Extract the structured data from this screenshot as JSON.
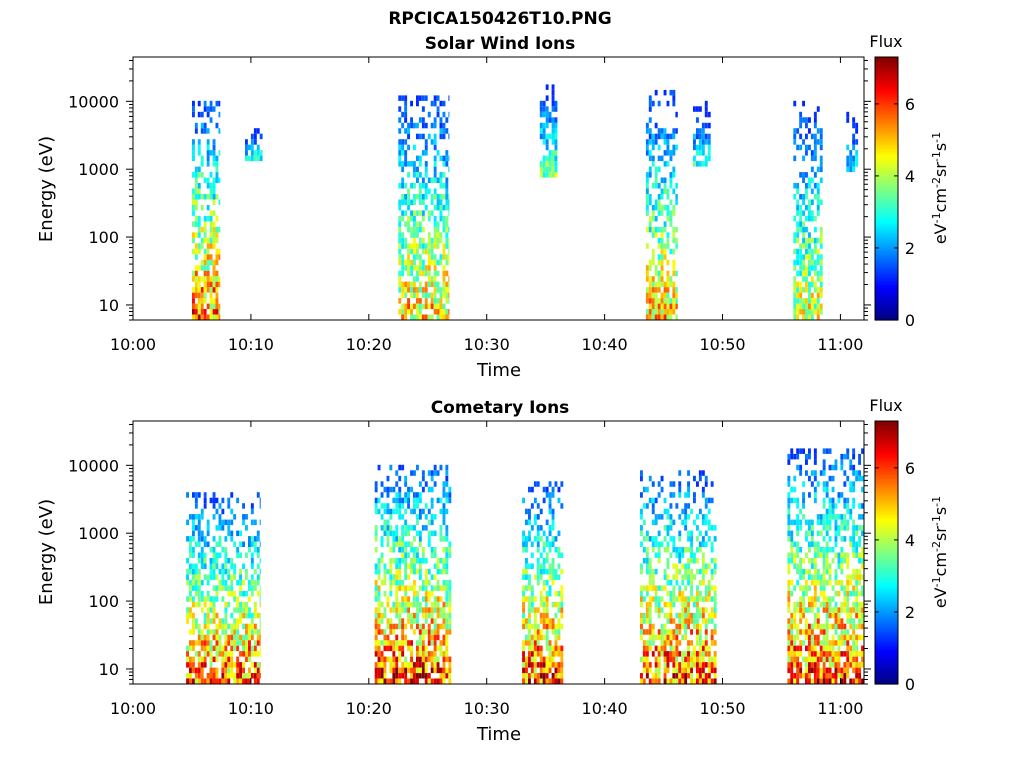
{
  "figure": {
    "title": "RPCICA150426T10.PNG"
  },
  "chart_data": [
    {
      "type": "heatmap",
      "title": "Solar Wind Ions",
      "xlabel": "Time",
      "ylabel": "Energy (eV)",
      "xlim": [
        "10:00",
        "11:02"
      ],
      "ylim": [
        6,
        45000
      ],
      "yscale": "log",
      "x_ticks": [
        "10:00",
        "10:10",
        "10:20",
        "10:30",
        "10:40",
        "10:50",
        "11:00"
      ],
      "y_ticks": [
        "10",
        "100",
        "1000",
        "10000"
      ],
      "colorbar": {
        "title": "Flux",
        "label": "eV-1cm-2sr-1s-1",
        "range": [
          0,
          7.3
        ],
        "ticks": [
          "0",
          "2",
          "4",
          "6"
        ],
        "colormap": "jet"
      },
      "bursts": [
        {
          "time_min": 5.0,
          "time_max": 7.4,
          "e_low": 6,
          "e_high": 10000,
          "peak_flux": 6.8
        },
        {
          "time_min": 9.5,
          "time_max": 11.0,
          "e_low": 1300,
          "e_high": 3500,
          "peak_flux": 3.5
        },
        {
          "time_min": 22.5,
          "time_max": 26.8,
          "e_low": 6,
          "e_high": 12000,
          "peak_flux": 6.0
        },
        {
          "time_min": 34.5,
          "time_max": 36.0,
          "e_low": 700,
          "e_high": 15000,
          "peak_flux": 4.5
        },
        {
          "time_min": 43.5,
          "time_max": 46.2,
          "e_low": 6,
          "e_high": 13000,
          "peak_flux": 6.0
        },
        {
          "time_min": 47.5,
          "time_max": 49.0,
          "e_low": 1000,
          "e_high": 9000,
          "peak_flux": 3.5
        },
        {
          "time_min": 56.0,
          "time_max": 58.5,
          "e_low": 6,
          "e_high": 9000,
          "peak_flux": 5.5
        },
        {
          "time_min": 60.5,
          "time_max": 61.5,
          "e_low": 800,
          "e_high": 6000,
          "peak_flux": 3.5
        }
      ]
    },
    {
      "type": "heatmap",
      "title": "Cometary Ions",
      "xlabel": "Time",
      "ylabel": "Energy (eV)",
      "xlim": [
        "10:00",
        "11:02"
      ],
      "ylim": [
        6,
        45000
      ],
      "yscale": "log",
      "x_ticks": [
        "10:00",
        "10:10",
        "10:20",
        "10:30",
        "10:40",
        "10:50",
        "11:00"
      ],
      "y_ticks": [
        "10",
        "100",
        "1000",
        "10000"
      ],
      "colorbar": {
        "title": "Flux",
        "label": "eV-1cm-2sr-1s-1",
        "range": [
          0,
          7.3
        ],
        "ticks": [
          "0",
          "2",
          "4",
          "6"
        ],
        "colormap": "jet"
      },
      "bursts": [
        {
          "time_min": 4.5,
          "time_max": 10.8,
          "e_low": 6,
          "e_high": 3800,
          "peak_flux": 7.0
        },
        {
          "time_min": 20.5,
          "time_max": 27.0,
          "e_low": 6,
          "e_high": 10000,
          "peak_flux": 7.3
        },
        {
          "time_min": 33.0,
          "time_max": 36.5,
          "e_low": 6,
          "e_high": 5000,
          "peak_flux": 7.3
        },
        {
          "time_min": 43.0,
          "time_max": 49.5,
          "e_low": 6,
          "e_high": 8000,
          "peak_flux": 7.2
        },
        {
          "time_min": 55.5,
          "time_max": 62.0,
          "e_low": 6,
          "e_high": 16000,
          "peak_flux": 7.2
        }
      ]
    }
  ]
}
